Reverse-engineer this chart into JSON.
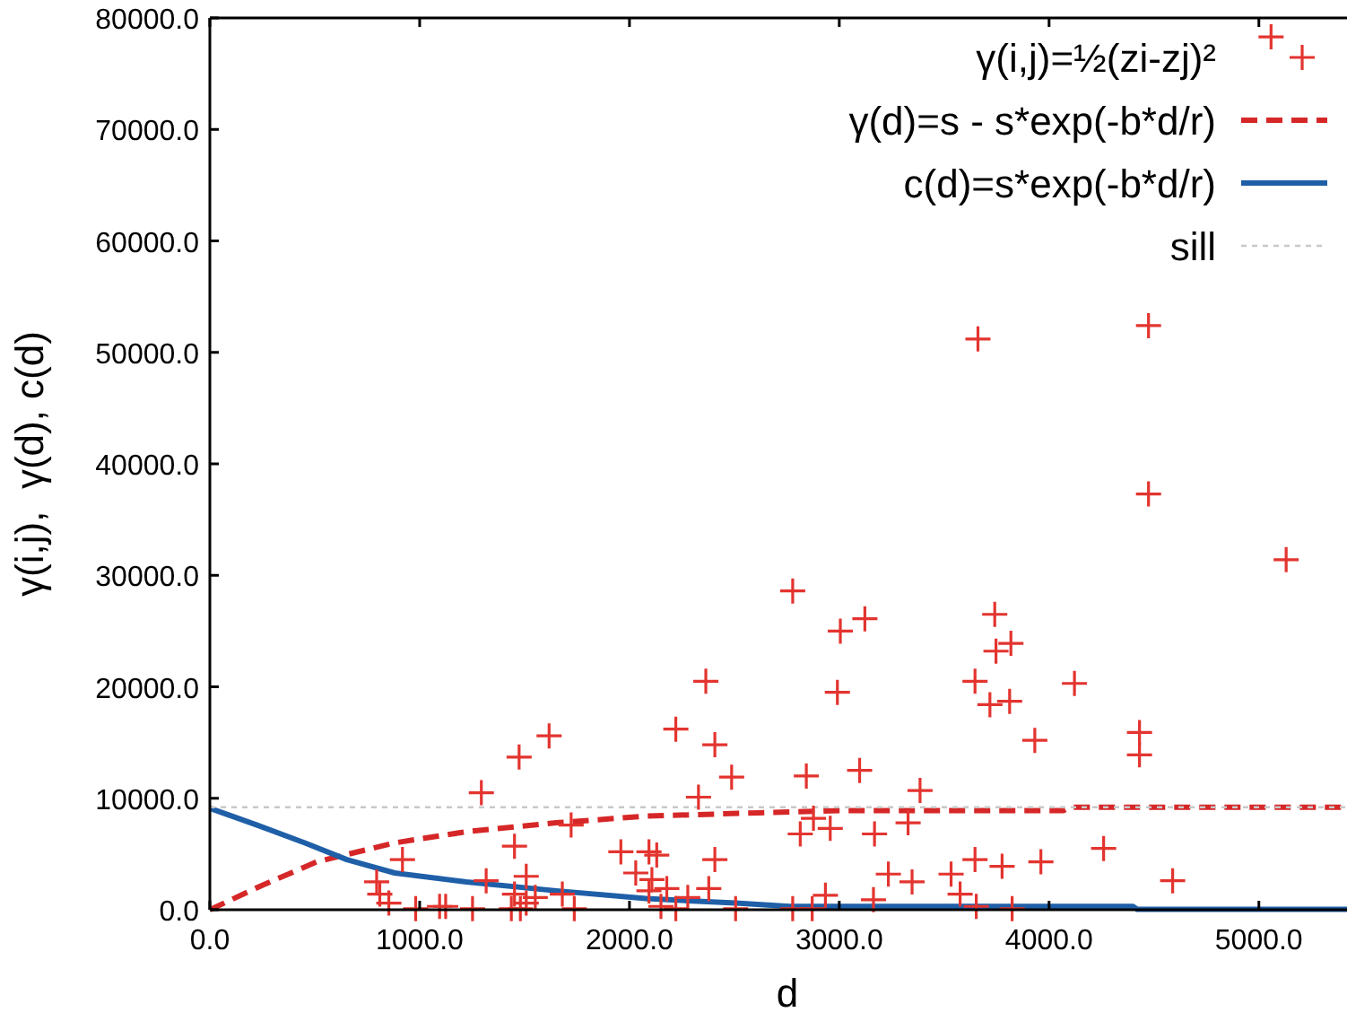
{
  "chart_data": {
    "type": "scatter",
    "xlabel": "d",
    "ylabel": "γ(i,j),  γ(d), c(d)",
    "xlim": [
      0,
      5420
    ],
    "ylim": [
      0,
      80000
    ],
    "xticks": [
      {
        "value": 0,
        "label": "0.0"
      },
      {
        "value": 1000,
        "label": "1000.0"
      },
      {
        "value": 2000,
        "label": "2000.0"
      },
      {
        "value": 3000,
        "label": "3000.0"
      },
      {
        "value": 4000,
        "label": "4000.0"
      },
      {
        "value": 5000,
        "label": "5000.0"
      }
    ],
    "yticks": [
      {
        "value": 0,
        "label": "0.0"
      },
      {
        "value": 10000,
        "label": "10000.0"
      },
      {
        "value": 20000,
        "label": "20000.0"
      },
      {
        "value": 30000,
        "label": "30000.0"
      },
      {
        "value": 40000,
        "label": "40000.0"
      },
      {
        "value": 50000,
        "label": "50000.0"
      },
      {
        "value": 60000,
        "label": "60000.0"
      },
      {
        "value": 70000,
        "label": "70000.0"
      },
      {
        "value": 80000,
        "label": "80000.0"
      }
    ],
    "legend": "top right",
    "series": [
      {
        "name": "γ(i,j)=½(zi-zj)²",
        "marker": "cross",
        "color": "#e3342f",
        "x": [
          2778,
          3005,
          3122,
          2364,
          2991,
          3661,
          4474,
          4474,
          5130,
          3741,
          3818,
          3747,
          3647,
          4121,
          5058,
          3718,
          3812,
          3932,
          4431,
          4431,
          2843,
          3097,
          3385,
          2877,
          2814,
          2957,
          3168,
          3328,
          4260,
          3234,
          3347,
          3533,
          3647,
          3776,
          3961,
          4589,
          2934,
          3163,
          3576,
          2778,
          2871,
          3653,
          3824,
          1617,
          1474,
          1294,
          2221,
          2407,
          2487,
          2329,
          1722,
          918,
          1452,
          1959,
          2093,
          2130,
          2407,
          795,
          810,
          853,
          1317,
          1508,
          1452,
          1551,
          1680,
          2030,
          2107,
          2093,
          2178,
          2278,
          2378,
          981,
          1095,
          1124,
          1252,
          1437,
          1480,
          1508,
          1737,
          2150,
          2221,
          2506
        ],
        "values": [
          28600,
          25000,
          26100,
          20500,
          19500,
          51200,
          52400,
          37300,
          31400,
          26500,
          23900,
          23200,
          20500,
          20300,
          78300,
          18400,
          18700,
          15200,
          15900,
          13900,
          12000,
          12500,
          10700,
          8200,
          6800,
          7300,
          6800,
          7800,
          5500,
          3200,
          2500,
          3200,
          4500,
          3900,
          4300,
          2600,
          1300,
          900,
          1400,
          100,
          100,
          300,
          100,
          15600,
          13700,
          10500,
          16200,
          14800,
          11900,
          10100,
          7600,
          4500,
          5700,
          5200,
          5200,
          4900,
          4500,
          2500,
          1400,
          600,
          2600,
          3000,
          1400,
          1100,
          1400,
          3300,
          2700,
          1700,
          1900,
          1100,
          1900,
          100,
          300,
          300,
          100,
          100,
          100,
          600,
          100,
          300,
          100,
          100
        ]
      },
      {
        "name": "γ(d)=s - s*exp(-b*d/r)",
        "type": "line",
        "line_style": "dashed",
        "color": "#d62728",
        "x": [
          0,
          250,
          510,
          881,
          1223,
          1651,
          2079,
          2618,
          3000,
          4070,
          4100,
          5420
        ],
        "values": [
          0,
          2200,
          4300,
          6000,
          7000,
          7800,
          8400,
          8700,
          8900,
          8900,
          9200,
          9200
        ]
      },
      {
        "name": "c(d)=s*exp(-b*d/r)",
        "type": "line",
        "line_style": "solid",
        "color": "#1f5fa8",
        "x": [
          0,
          225,
          453,
          653,
          881,
          1223,
          1651,
          2079,
          2506,
          2763,
          4400,
          4420,
          5420
        ],
        "values": [
          9100,
          7600,
          6000,
          4500,
          3300,
          2500,
          1700,
          1000,
          600,
          300,
          300,
          50,
          50
        ]
      },
      {
        "name": "sill",
        "type": "line",
        "line_style": "dotted",
        "color": "#c8c8c8",
        "x": [
          0,
          5420
        ],
        "values": [
          9200,
          9200
        ]
      }
    ]
  }
}
